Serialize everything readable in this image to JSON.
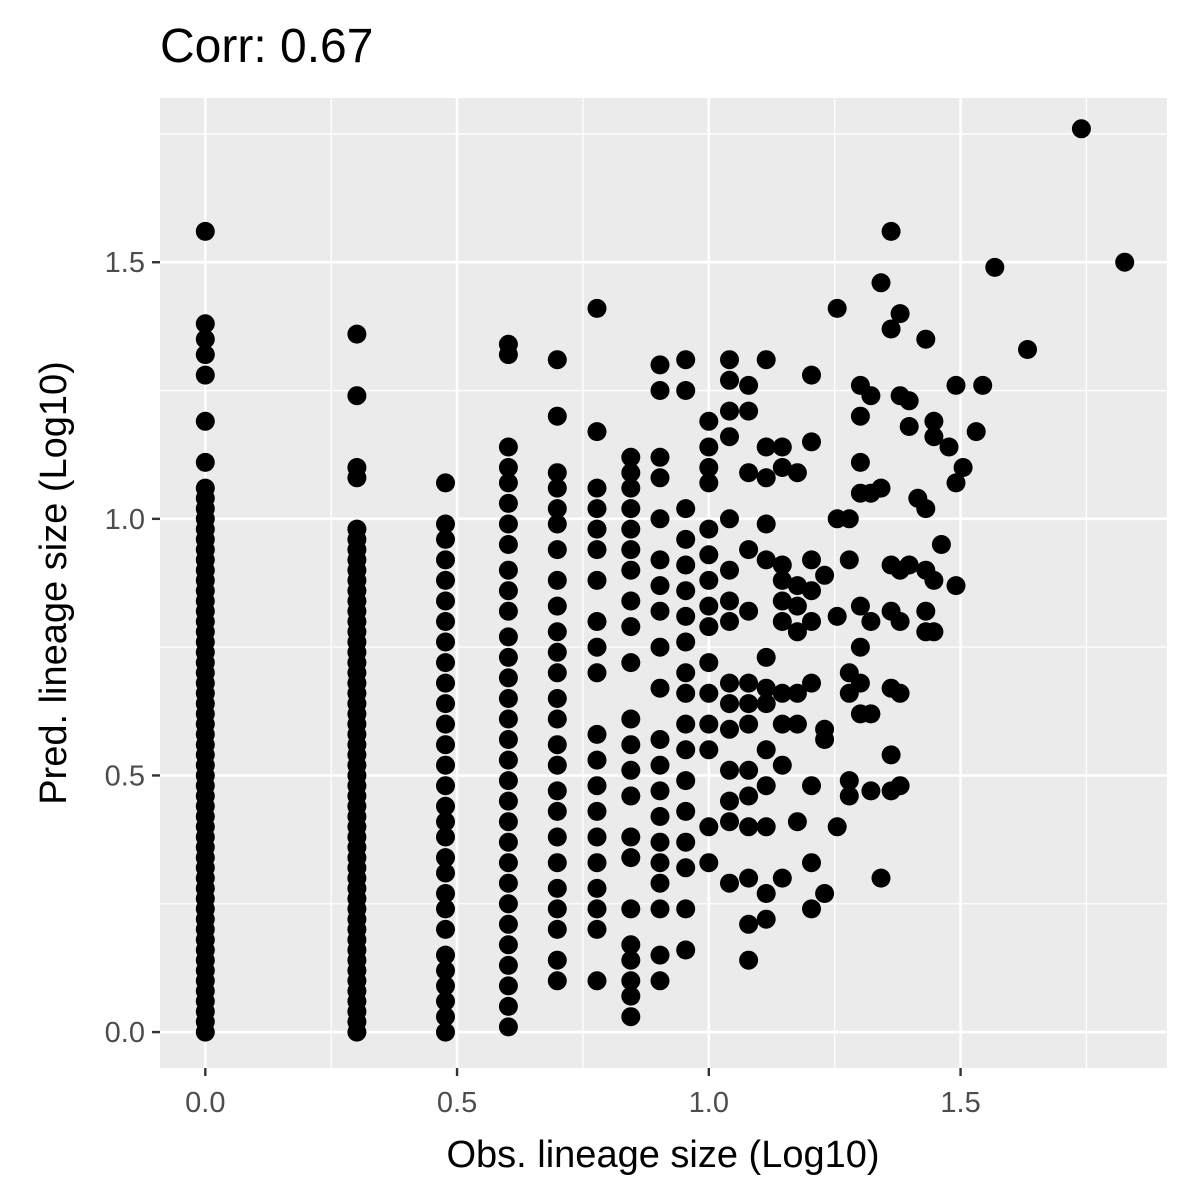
{
  "chart_data": {
    "type": "scatter",
    "title": "Corr: 0.67",
    "xlabel": "Obs. lineage size (Log10)",
    "ylabel": "Pred. lineage size (Log10)",
    "xlim": [
      -0.09,
      1.91
    ],
    "ylim": [
      -0.07,
      1.82
    ],
    "x_ticks": [
      0.0,
      0.5,
      1.0,
      1.5
    ],
    "x_tick_labels": [
      "0.0",
      "0.5",
      "1.0",
      "1.5"
    ],
    "y_ticks": [
      0.0,
      0.5,
      1.0,
      1.5
    ],
    "y_tick_labels": [
      "0.0",
      "0.5",
      "1.0",
      "1.5"
    ],
    "x_minor": [
      0.25,
      0.75,
      1.25,
      1.75
    ],
    "y_minor": [
      0.25,
      0.75,
      1.25,
      1.75
    ],
    "grid": true,
    "colors": {
      "panel": "#ebebeb",
      "grid": "#ffffff",
      "point": "#000000",
      "tick_text": "#4d4d4d"
    },
    "columns": [
      {
        "x": 0.0,
        "y": [
          0.0,
          0.02,
          0.04,
          0.06,
          0.08,
          0.1,
          0.12,
          0.14,
          0.16,
          0.18,
          0.2,
          0.22,
          0.24,
          0.26,
          0.28,
          0.3,
          0.32,
          0.34,
          0.36,
          0.38,
          0.4,
          0.42,
          0.44,
          0.46,
          0.48,
          0.5,
          0.52,
          0.54,
          0.56,
          0.58,
          0.6,
          0.62,
          0.64,
          0.66,
          0.68,
          0.7,
          0.72,
          0.74,
          0.76,
          0.78,
          0.8,
          0.82,
          0.84,
          0.86,
          0.88,
          0.9,
          0.92,
          0.94,
          0.96,
          0.98,
          1.0,
          1.02,
          1.04,
          1.06,
          1.11,
          1.19,
          1.28,
          1.32,
          1.35,
          1.38,
          1.56
        ]
      },
      {
        "x": 0.301,
        "y": [
          0.0,
          0.02,
          0.04,
          0.06,
          0.08,
          0.1,
          0.12,
          0.14,
          0.16,
          0.18,
          0.2,
          0.22,
          0.24,
          0.26,
          0.28,
          0.3,
          0.32,
          0.34,
          0.36,
          0.38,
          0.4,
          0.42,
          0.44,
          0.46,
          0.48,
          0.5,
          0.52,
          0.54,
          0.56,
          0.58,
          0.6,
          0.62,
          0.64,
          0.66,
          0.68,
          0.7,
          0.72,
          0.74,
          0.76,
          0.78,
          0.8,
          0.82,
          0.84,
          0.86,
          0.88,
          0.9,
          0.92,
          0.94,
          0.96,
          0.98,
          1.08,
          1.1,
          1.24,
          1.36
        ]
      },
      {
        "x": 0.477,
        "y": [
          0.0,
          0.03,
          0.06,
          0.09,
          0.12,
          0.15,
          0.2,
          0.24,
          0.27,
          0.31,
          0.34,
          0.38,
          0.41,
          0.44,
          0.48,
          0.52,
          0.56,
          0.6,
          0.64,
          0.68,
          0.72,
          0.76,
          0.8,
          0.84,
          0.88,
          0.92,
          0.96,
          0.99,
          1.07
        ]
      },
      {
        "x": 0.602,
        "y": [
          0.01,
          0.05,
          0.09,
          0.13,
          0.17,
          0.21,
          0.25,
          0.29,
          0.33,
          0.37,
          0.41,
          0.45,
          0.49,
          0.53,
          0.57,
          0.61,
          0.65,
          0.69,
          0.73,
          0.77,
          0.82,
          0.86,
          0.9,
          0.95,
          0.99,
          1.03,
          1.07,
          1.1,
          1.14,
          1.32,
          1.34
        ]
      },
      {
        "x": 0.699,
        "y": [
          0.1,
          0.14,
          0.2,
          0.24,
          0.28,
          0.33,
          0.38,
          0.43,
          0.47,
          0.52,
          0.56,
          0.61,
          0.65,
          0.7,
          0.74,
          0.78,
          0.83,
          0.88,
          0.94,
          0.99,
          1.02,
          1.06,
          1.09,
          1.2,
          1.31
        ]
      },
      {
        "x": 0.778,
        "y": [
          0.1,
          0.2,
          0.24,
          0.28,
          0.33,
          0.38,
          0.43,
          0.48,
          0.53,
          0.58,
          0.7,
          0.75,
          0.8,
          0.88,
          0.94,
          0.98,
          1.02,
          1.06,
          1.17,
          1.41
        ]
      },
      {
        "x": 0.845,
        "y": [
          0.03,
          0.07,
          0.1,
          0.14,
          0.17,
          0.24,
          0.34,
          0.38,
          0.46,
          0.51,
          0.56,
          0.61,
          0.72,
          0.79,
          0.84,
          0.9,
          0.94,
          0.98,
          1.02,
          1.06,
          1.09,
          1.12
        ]
      },
      {
        "x": 0.903,
        "y": [
          0.1,
          0.15,
          0.24,
          0.29,
          0.33,
          0.37,
          0.42,
          0.47,
          0.52,
          0.57,
          0.67,
          0.75,
          0.82,
          0.87,
          0.92,
          1.0,
          1.08,
          1.12,
          1.25,
          1.3
        ]
      },
      {
        "x": 0.954,
        "y": [
          0.16,
          0.24,
          0.32,
          0.37,
          0.43,
          0.49,
          0.55,
          0.6,
          0.66,
          0.7,
          0.76,
          0.81,
          0.86,
          0.91,
          0.96,
          1.02,
          1.25,
          1.31
        ]
      },
      {
        "x": 1.0,
        "y": [
          0.33,
          0.4,
          0.55,
          0.6,
          0.66,
          0.72,
          0.79,
          0.83,
          0.88,
          0.93,
          0.98,
          1.07,
          1.1,
          1.14,
          1.19
        ]
      },
      {
        "x": 1.041,
        "y": [
          0.29,
          0.41,
          0.45,
          0.51,
          0.59,
          0.64,
          0.68,
          0.8,
          0.84,
          0.9,
          1.0,
          1.16,
          1.21,
          1.27,
          1.31
        ]
      },
      {
        "x": 1.079,
        "y": [
          0.14,
          0.21,
          0.3,
          0.4,
          0.46,
          0.51,
          0.6,
          0.64,
          0.68,
          0.82,
          0.94,
          1.09,
          1.21,
          1.26
        ]
      },
      {
        "x": 1.114,
        "y": [
          0.22,
          0.27,
          0.4,
          0.48,
          0.55,
          0.64,
          0.67,
          0.73,
          0.92,
          0.99,
          1.08,
          1.14,
          1.31
        ]
      },
      {
        "x": 1.146,
        "y": [
          0.3,
          0.52,
          0.6,
          0.66,
          0.8,
          0.84,
          0.88,
          0.91,
          1.1,
          1.14
        ]
      },
      {
        "x": 1.176,
        "y": [
          0.41,
          0.6,
          0.66,
          0.78,
          0.83,
          0.87,
          1.09
        ]
      },
      {
        "x": 1.204,
        "y": [
          0.24,
          0.33,
          0.48,
          0.68,
          0.8,
          0.86,
          0.92,
          1.15,
          1.28
        ]
      },
      {
        "x": 1.23,
        "y": [
          0.27,
          0.57,
          0.59,
          0.89
        ]
      },
      {
        "x": 1.255,
        "y": [
          0.4,
          0.81,
          1.0,
          1.41
        ]
      },
      {
        "x": 1.279,
        "y": [
          0.46,
          0.49,
          0.66,
          0.7,
          0.92,
          1.0
        ]
      },
      {
        "x": 1.301,
        "y": [
          0.62,
          0.68,
          0.75,
          0.83,
          1.05,
          1.11,
          1.2,
          1.26
        ]
      },
      {
        "x": 1.322,
        "y": [
          0.47,
          0.62,
          0.8,
          1.05,
          1.24
        ]
      },
      {
        "x": 1.342,
        "y": [
          0.3,
          1.06,
          1.46
        ]
      },
      {
        "x": 1.362,
        "y": [
          0.47,
          0.54,
          0.67,
          0.82,
          0.91,
          1.37,
          1.56
        ]
      },
      {
        "x": 1.38,
        "y": [
          0.48,
          0.66,
          0.8,
          0.9,
          1.24,
          1.4
        ]
      },
      {
        "x": 1.398,
        "y": [
          0.91,
          1.18,
          1.23
        ]
      },
      {
        "x": 1.415,
        "y": [
          1.04
        ]
      },
      {
        "x": 1.431,
        "y": [
          0.78,
          0.82,
          0.9,
          1.02,
          1.35
        ]
      },
      {
        "x": 1.447,
        "y": [
          0.78,
          0.88,
          1.16,
          1.19
        ]
      },
      {
        "x": 1.462,
        "y": [
          0.95
        ]
      },
      {
        "x": 1.477,
        "y": [
          1.14
        ]
      },
      {
        "x": 1.491,
        "y": [
          0.87,
          1.07,
          1.26
        ]
      },
      {
        "x": 1.505,
        "y": [
          1.1
        ]
      },
      {
        "x": 1.531,
        "y": [
          1.17
        ]
      },
      {
        "x": 1.544,
        "y": [
          1.26
        ]
      },
      {
        "x": 1.568,
        "y": [
          1.49
        ]
      },
      {
        "x": 1.633,
        "y": [
          1.33
        ]
      },
      {
        "x": 1.74,
        "y": [
          1.76
        ]
      },
      {
        "x": 1.826,
        "y": [
          1.5
        ]
      }
    ]
  }
}
